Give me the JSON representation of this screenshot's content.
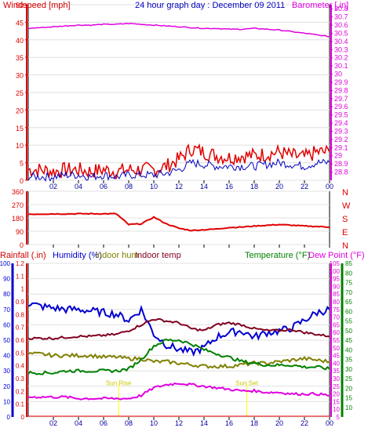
{
  "header": {
    "windspeed_label": "Windspeed [mph]",
    "graph_title": "24 hour graph day : December 09 2011",
    "barometer_label": "Barometer [.in]"
  },
  "middle_labels": {
    "rainfall": "Rainfall (.in)",
    "humidity": "Humidity (%)",
    "indoor_hum": "Indoor hum",
    "indoor_temp": "Indoor temp",
    "temperature": "Temperature (°F)",
    "dew_point": "Dew Point (°F)"
  },
  "x_ticks": [
    "02",
    "04",
    "06",
    "08",
    "10",
    "12",
    "14",
    "16",
    "18",
    "20",
    "22",
    "00"
  ],
  "direction_letters": [
    "N",
    "W",
    "S",
    "E",
    "N"
  ],
  "sun_markers": {
    "sunrise": "Sun Rise",
    "sunset": "Sun Set"
  },
  "colors": {
    "wind": "#e00000",
    "wind_gust_avg": "#0000c0",
    "barometer": "#e000e0",
    "direction": "#e00000",
    "humidity": "#0000d0",
    "indoor_hum": "#808000",
    "indoor_temp": "#800020",
    "temperature": "#008000",
    "dew_point": "#e000e0",
    "rain": "#e00000",
    "sun": "#ffff00",
    "axis": "#000000",
    "grid": "#e0e0e0"
  },
  "chart_data": [
    {
      "type": "line",
      "title": "24 hour graph day : December 09 2011",
      "x": [
        0,
        1,
        2,
        3,
        4,
        5,
        6,
        7,
        8,
        9,
        10,
        11,
        12,
        13,
        14,
        15,
        16,
        17,
        18,
        19,
        20,
        21,
        22,
        23,
        24
      ],
      "xticks": [
        "02",
        "04",
        "06",
        "08",
        "10",
        "12",
        "14",
        "16",
        "18",
        "20",
        "22",
        "00"
      ],
      "ylabel": "Windspeed [mph]",
      "ylim": [
        0,
        50
      ],
      "yticks": [
        0,
        5,
        10,
        15,
        20,
        25,
        30,
        35,
        40,
        45,
        50
      ],
      "y2label": "Barometer [.in]",
      "y2lim": [
        28.7,
        30.85
      ],
      "y2ticks": [
        28.8,
        28.9,
        29,
        29.1,
        29.2,
        29.3,
        29.4,
        29.5,
        29.6,
        29.7,
        29.8,
        29.9,
        30,
        30.1,
        30.2,
        30.3,
        30.4,
        30.5,
        30.6,
        30.7,
        30.8
      ],
      "series": [
        {
          "role": "wind",
          "axis": "y",
          "values": [
            3,
            3,
            2.5,
            3,
            3,
            2.5,
            3,
            2.5,
            3,
            3,
            3,
            4,
            6,
            9,
            8,
            7,
            6.5,
            7,
            7,
            7.5,
            8,
            7,
            6.5,
            8,
            8
          ]
        },
        {
          "role": "wind_avg",
          "axis": "y",
          "values": [
            1,
            1,
            1,
            1.5,
            1.5,
            1,
            1.5,
            1,
            1.5,
            1.5,
            1.5,
            2,
            3,
            5,
            4.5,
            4,
            4,
            4,
            4,
            4.5,
            5,
            4.5,
            4,
            5,
            5
          ]
        },
        {
          "role": "barometer",
          "axis": "y2",
          "values": [
            30.56,
            30.57,
            30.58,
            30.59,
            30.6,
            30.6,
            30.61,
            30.61,
            30.62,
            30.61,
            30.6,
            30.59,
            30.58,
            30.57,
            30.56,
            30.56,
            30.55,
            30.55,
            30.56,
            30.55,
            30.54,
            30.52,
            30.5,
            30.48,
            30.46
          ]
        }
      ]
    },
    {
      "type": "line",
      "ylim": [
        0,
        360
      ],
      "yticks": [
        0,
        90,
        180,
        270,
        360
      ],
      "x": [
        0,
        1,
        2,
        3,
        4,
        5,
        6,
        7,
        8,
        9,
        10,
        11,
        12,
        13,
        14,
        15,
        16,
        17,
        18,
        19,
        20,
        21,
        22,
        23,
        24
      ],
      "series": [
        {
          "role": "wind_direction",
          "values": [
            205,
            206,
            207,
            207,
            208,
            208,
            208,
            208,
            135,
            140,
            185,
            140,
            110,
            95,
            100,
            105,
            115,
            118,
            125,
            130,
            135,
            130,
            125,
            122,
            118
          ]
        }
      ]
    },
    {
      "type": "line",
      "x": [
        0,
        1,
        2,
        3,
        4,
        5,
        6,
        7,
        8,
        9,
        10,
        11,
        12,
        13,
        14,
        15,
        16,
        17,
        18,
        19,
        20,
        21,
        22,
        23,
        24
      ],
      "xticks": [
        "02",
        "04",
        "06",
        "08",
        "10",
        "12",
        "14",
        "16",
        "18",
        "20",
        "22",
        "00"
      ],
      "axes": {
        "rain": {
          "label": "Rainfall (.in)",
          "ylim": [
            0,
            1.2
          ],
          "ticks": [
            0,
            0.1,
            0.2,
            0.3,
            0.4,
            0.5,
            0.6,
            0.7,
            0.8,
            0.9,
            1,
            1.1,
            1.2
          ]
        },
        "humidity": {
          "label": "Humidity (%)",
          "ylim": [
            0,
            100
          ],
          "ticks": [
            0,
            10,
            20,
            30,
            40,
            50,
            60,
            70,
            80,
            90,
            100
          ]
        },
        "temperature": {
          "label": "Temperature (°F)",
          "ylim": [
            5,
            85
          ],
          "ticks": [
            10,
            15,
            20,
            25,
            30,
            35,
            40,
            45,
            50,
            55,
            60,
            65,
            70,
            75,
            80,
            85
          ]
        },
        "dew_point": {
          "label": "Dew Point (°F)",
          "ylim": [
            5,
            105
          ],
          "ticks": [
            5,
            10,
            15,
            20,
            25,
            30,
            35,
            40,
            45,
            50,
            55,
            60,
            65,
            70,
            75,
            80,
            85,
            90,
            95,
            100,
            105
          ]
        }
      },
      "series": [
        {
          "name": "Humidity (%)",
          "axis": "humidity",
          "values": [
            74,
            72,
            71,
            70,
            70,
            69,
            68,
            67,
            63,
            70,
            54,
            47,
            44,
            42,
            45,
            52,
            55,
            56,
            52,
            55,
            56,
            58,
            63,
            68,
            70
          ]
        },
        {
          "name": "Indoor hum",
          "axis": "humidity",
          "values": [
            41,
            41,
            40,
            40,
            40,
            40,
            39,
            39,
            38,
            38,
            36,
            36,
            35,
            34,
            33,
            33,
            33,
            34,
            35,
            35,
            36,
            37,
            38,
            37,
            36
          ]
        },
        {
          "name": "Indoor temp",
          "axis": "temperature",
          "values": [
            46,
            46,
            46,
            46.5,
            47,
            47,
            47.5,
            48,
            50,
            53,
            56,
            55,
            54,
            51,
            50,
            53,
            54,
            53,
            51,
            50,
            50,
            50.5,
            49,
            48,
            47
          ]
        },
        {
          "name": "Temperature (°F)",
          "axis": "temperature",
          "values": [
            28,
            28,
            28,
            29,
            29,
            29,
            29,
            29,
            30,
            35,
            42,
            45,
            45,
            43,
            40,
            38,
            36,
            34,
            33,
            32,
            32,
            32,
            31,
            31,
            30
          ]
        },
        {
          "name": "Dew Point (°F)",
          "axis": "dew_point",
          "values": [
            18,
            18,
            18,
            18,
            17,
            17,
            17,
            17,
            17,
            19,
            24,
            26,
            27,
            26,
            25,
            24,
            23,
            22,
            22,
            21,
            21,
            20,
            20,
            20,
            19
          ]
        }
      ],
      "sunrise": 7.2,
      "sunset": 17.4
    }
  ]
}
